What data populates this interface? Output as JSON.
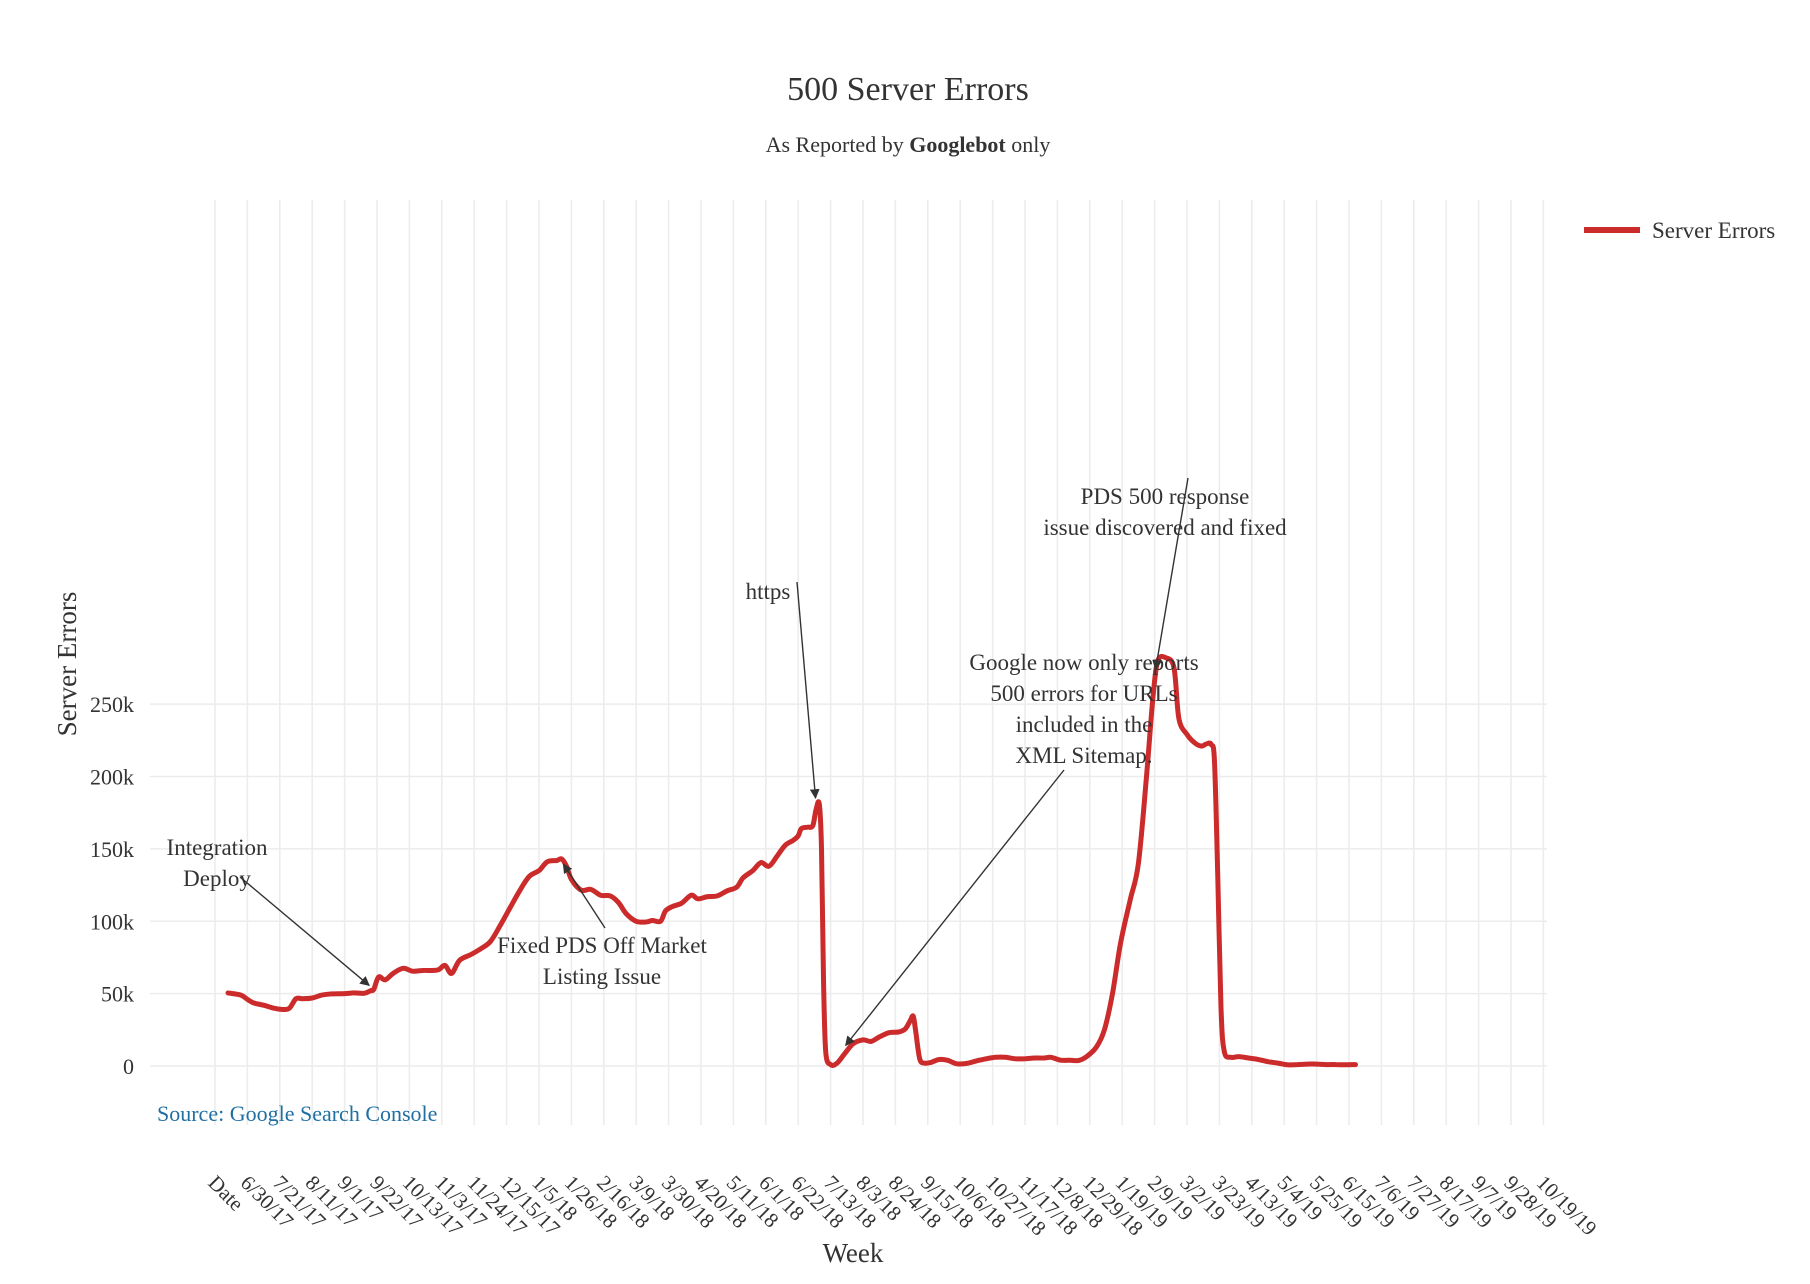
{
  "chart_data": {
    "type": "line",
    "title": "500 Server Errors",
    "subtitle_parts": [
      "As Reported by ",
      "Googlebot",
      " only"
    ],
    "xlabel": "Week",
    "ylabel": "Server Errors",
    "ylim": [
      0,
      280000
    ],
    "yticks": [
      0,
      50000,
      100000,
      150000,
      200000,
      250000
    ],
    "ytick_labels": [
      "0",
      "50k",
      "100k",
      "150k",
      "200k",
      "250k"
    ],
    "grid": true,
    "legend_position": "top-right",
    "series_color": "#cc2b2b",
    "xtick_labels": [
      "Date",
      "6/30/17",
      "7/21/17",
      "8/11/17",
      "9/1/17",
      "9/22/17",
      "10/13/17",
      "11/3/17",
      "11/24/17",
      "12/15/17",
      "1/5/18",
      "1/26/18",
      "2/16/18",
      "3/9/18",
      "3/30/18",
      "4/20/18",
      "5/11/18",
      "6/1/18",
      "6/22/18",
      "7/13/18",
      "8/3/18",
      "8/24/18",
      "9/15/18",
      "10/6/18",
      "10/27/18",
      "11/17/18",
      "12/8/18",
      "12/29/18",
      "1/19/19",
      "2/9/19",
      "3/2/19",
      "3/23/19",
      "4/13/19",
      "5/4/19",
      "5/25/19",
      "6/15/19",
      "7/6/19",
      "7/27/19",
      "8/17/19",
      "9/7/19",
      "9/28/19",
      "10/19/19"
    ],
    "series": [
      {
        "name": "Server Errors",
        "points": [
          [
            0.4,
            50500
          ],
          [
            0.8,
            49000
          ],
          [
            1.0,
            46000
          ],
          [
            1.2,
            43500
          ],
          [
            1.5,
            42000
          ],
          [
            1.8,
            40000
          ],
          [
            2.1,
            39000
          ],
          [
            2.3,
            40000
          ],
          [
            2.5,
            46500
          ],
          [
            2.7,
            46500
          ],
          [
            3.0,
            47000
          ],
          [
            3.3,
            49000
          ],
          [
            3.6,
            49800
          ],
          [
            4.0,
            50000
          ],
          [
            4.3,
            50500
          ],
          [
            4.6,
            50200
          ],
          [
            4.8,
            52000
          ],
          [
            4.9,
            53000
          ],
          [
            5.05,
            61500
          ],
          [
            5.25,
            59500
          ],
          [
            5.5,
            64000
          ],
          [
            5.8,
            67500
          ],
          [
            6.1,
            65500
          ],
          [
            6.4,
            66000
          ],
          [
            6.7,
            66000
          ],
          [
            6.9,
            66500
          ],
          [
            7.1,
            69500
          ],
          [
            7.3,
            64000
          ],
          [
            7.55,
            73000
          ],
          [
            7.9,
            77000
          ],
          [
            8.2,
            81000
          ],
          [
            8.5,
            86000
          ],
          [
            8.8,
            97000
          ],
          [
            9.1,
            109000
          ],
          [
            9.4,
            121000
          ],
          [
            9.7,
            131000
          ],
          [
            10.0,
            135000
          ],
          [
            10.25,
            141000
          ],
          [
            10.55,
            142000
          ],
          [
            10.7,
            143000
          ],
          [
            10.85,
            138000
          ],
          [
            11.0,
            129000
          ],
          [
            11.3,
            121500
          ],
          [
            11.6,
            122000
          ],
          [
            11.9,
            118000
          ],
          [
            12.2,
            117500
          ],
          [
            12.45,
            113000
          ],
          [
            12.7,
            105000
          ],
          [
            13.0,
            100000
          ],
          [
            13.3,
            99500
          ],
          [
            13.5,
            100500
          ],
          [
            13.75,
            100000
          ],
          [
            13.9,
            107000
          ],
          [
            14.1,
            110000
          ],
          [
            14.4,
            112500
          ],
          [
            14.7,
            118000
          ],
          [
            14.9,
            115500
          ],
          [
            15.2,
            117000
          ],
          [
            15.5,
            117500
          ],
          [
            15.8,
            121000
          ],
          [
            16.1,
            123500
          ],
          [
            16.3,
            130000
          ],
          [
            16.6,
            135000
          ],
          [
            16.85,
            140500
          ],
          [
            17.1,
            138000
          ],
          [
            17.35,
            145000
          ],
          [
            17.6,
            152500
          ],
          [
            17.85,
            156000
          ],
          [
            18.0,
            159000
          ],
          [
            18.1,
            164000
          ],
          [
            18.3,
            165000
          ],
          [
            18.45,
            166000
          ],
          [
            18.55,
            177000
          ],
          [
            18.65,
            181000
          ],
          [
            18.72,
            150000
          ],
          [
            18.78,
            60000
          ],
          [
            18.85,
            10000
          ],
          [
            19.0,
            1000
          ],
          [
            19.2,
            2000
          ],
          [
            19.45,
            9000
          ],
          [
            19.7,
            15500
          ],
          [
            20.0,
            18000
          ],
          [
            20.25,
            17000
          ],
          [
            20.5,
            20000
          ],
          [
            20.8,
            23000
          ],
          [
            21.1,
            23500
          ],
          [
            21.3,
            25500
          ],
          [
            21.45,
            31000
          ],
          [
            21.55,
            34500
          ],
          [
            21.62,
            25000
          ],
          [
            21.75,
            5000
          ],
          [
            21.9,
            2000
          ],
          [
            22.1,
            2500
          ],
          [
            22.35,
            4500
          ],
          [
            22.6,
            4000
          ],
          [
            22.9,
            1500
          ],
          [
            23.2,
            1800
          ],
          [
            23.5,
            3500
          ],
          [
            23.8,
            5000
          ],
          [
            24.1,
            6000
          ],
          [
            24.4,
            6000
          ],
          [
            24.7,
            5000
          ],
          [
            25.0,
            5000
          ],
          [
            25.3,
            5500
          ],
          [
            25.6,
            5500
          ],
          [
            25.8,
            6000
          ],
          [
            26.1,
            4000
          ],
          [
            26.4,
            4000
          ],
          [
            26.65,
            3800
          ],
          [
            26.9,
            6500
          ],
          [
            27.2,
            13000
          ],
          [
            27.45,
            25000
          ],
          [
            27.7,
            50000
          ],
          [
            27.95,
            85000
          ],
          [
            28.25,
            115000
          ],
          [
            28.5,
            140000
          ],
          [
            28.75,
            200000
          ],
          [
            28.95,
            255000
          ],
          [
            29.1,
            280000
          ],
          [
            29.35,
            282000
          ],
          [
            29.6,
            275000
          ],
          [
            29.75,
            240000
          ],
          [
            30.0,
            229000
          ],
          [
            30.25,
            223000
          ],
          [
            30.45,
            221000
          ],
          [
            30.6,
            222500
          ],
          [
            30.75,
            222000
          ],
          [
            30.85,
            210000
          ],
          [
            30.95,
            130000
          ],
          [
            31.05,
            40000
          ],
          [
            31.15,
            10000
          ],
          [
            31.35,
            6000
          ],
          [
            31.6,
            6500
          ],
          [
            31.9,
            5500
          ],
          [
            32.2,
            4500
          ],
          [
            32.5,
            3000
          ],
          [
            32.8,
            2000
          ],
          [
            33.1,
            800
          ],
          [
            33.4,
            1000
          ],
          [
            33.7,
            1300
          ],
          [
            34.0,
            1300
          ],
          [
            34.3,
            1000
          ],
          [
            34.6,
            1000
          ],
          [
            34.9,
            800
          ],
          [
            35.2,
            1000
          ]
        ]
      }
    ],
    "annotations": [
      {
        "lines": [
          "Integration",
          "Deploy"
        ],
        "x": 4.9,
        "y": 53000
      },
      {
        "lines": [
          "Fixed PDS Off Market",
          "Listing Issue"
        ],
        "x": 10.65,
        "y": 143000
      },
      {
        "lines": [
          "https"
        ],
        "x": 18.55,
        "y": 181000
      },
      {
        "lines": [
          "Google now only reports",
          "500 errors for URLs",
          "included in the",
          "XML Sitemap."
        ],
        "x": 19.35,
        "y": 11000
      },
      {
        "lines": [
          "PDS 500 response",
          "issue discovered and fixed"
        ],
        "x": 29.0,
        "y": 270000
      }
    ],
    "source": "Source: Google Search Console"
  }
}
